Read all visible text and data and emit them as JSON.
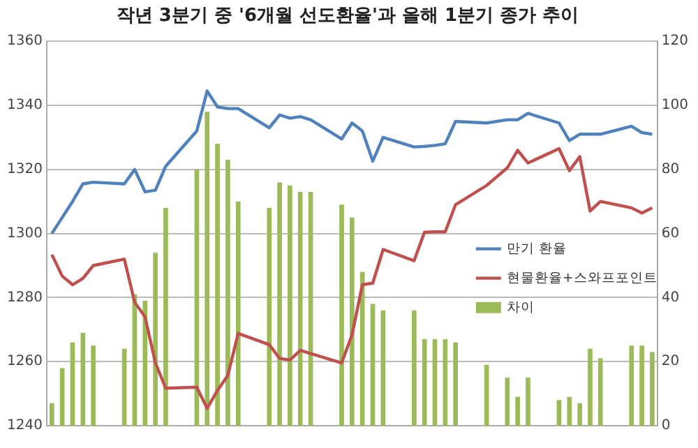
{
  "chart_data": {
    "type": "line",
    "title": "작년 3분기 중 '6개월 선도환율'과 올해 1분기 종가 추이",
    "categories": [
      null,
      null,
      null,
      null,
      null,
      null,
      null,
      null,
      null,
      null,
      null,
      null,
      null,
      null,
      null,
      null,
      null,
      null,
      null,
      null,
      null,
      null,
      null,
      null,
      null,
      null,
      null,
      null,
      null,
      null,
      null,
      null,
      null,
      null,
      null,
      null,
      null,
      null,
      null,
      null,
      null,
      null,
      null,
      null,
      null,
      null,
      null,
      null,
      null,
      null,
      null,
      null,
      null,
      null,
      null,
      null,
      null,
      null,
      null
    ],
    "series": [
      {
        "name": "만기 환율",
        "color": "#4f81bd",
        "axis": "y",
        "values": [
          1300,
          1305,
          1310,
          1315.5,
          1316,
          null,
          null,
          1315.5,
          1320,
          1313,
          1313.5,
          1321,
          null,
          null,
          1332,
          1344.5,
          1339.5,
          1339,
          1339,
          null,
          null,
          1333,
          1337,
          1336,
          1336.5,
          1335.5,
          null,
          null,
          1329.5,
          1334.5,
          1332,
          1322.6,
          1330,
          null,
          null,
          1327,
          1327.2,
          1327.5,
          1328,
          1335,
          null,
          null,
          1334.5,
          null,
          1335.5,
          1335.5,
          1337.5,
          null,
          null,
          1334.5,
          1329,
          1331,
          1331,
          1331,
          null,
          null,
          1333.5,
          1331.5,
          1331
        ]
      },
      {
        "name": "현물환율+스와프포인트",
        "color": "#c0504d",
        "axis": "y",
        "values": [
          1293.4,
          1286.7,
          1284,
          1286,
          1290,
          null,
          null,
          1292,
          1278.5,
          1274,
          1259.6,
          1251.7,
          null,
          null,
          1252,
          1245.4,
          1251,
          1255.7,
          1268.8,
          null,
          null,
          1265.3,
          1261,
          1260.5,
          1263.5,
          1262.5,
          null,
          null,
          1259.6,
          1268.4,
          1284,
          1284.5,
          1295,
          null,
          null,
          1291.5,
          1300.4,
          1300.5,
          1300.5,
          1309,
          null,
          null,
          1315,
          null,
          1320.5,
          1326,
          1322,
          null,
          null,
          1326.5,
          1319.6,
          1324,
          1307,
          1310,
          null,
          null,
          1308,
          1306.4,
          1308
        ]
      },
      {
        "name": "차이",
        "type": "bar",
        "color": "#9bbb59",
        "axis": "y2",
        "values": [
          7,
          18,
          26,
          29,
          25,
          null,
          null,
          24,
          41,
          39,
          54,
          68,
          null,
          null,
          80,
          98,
          88,
          83,
          70,
          null,
          null,
          68,
          76,
          75,
          73,
          73,
          null,
          null,
          69,
          65,
          48,
          38,
          36,
          null,
          null,
          36,
          27,
          27,
          27,
          26,
          null,
          null,
          19,
          null,
          15,
          9,
          15,
          null,
          null,
          8,
          9,
          7,
          24,
          21,
          null,
          null,
          25,
          25,
          23
        ]
      }
    ],
    "ylim": [
      1240,
      1360
    ],
    "yticks": [
      1240,
      1260,
      1280,
      1300,
      1320,
      1340,
      1360
    ],
    "y2lim": [
      0,
      120
    ],
    "y2ticks": [
      0,
      20,
      40,
      60,
      80,
      100,
      120
    ],
    "grid": "y",
    "legend": "right",
    "marker": "none",
    "line_style": "solid"
  }
}
